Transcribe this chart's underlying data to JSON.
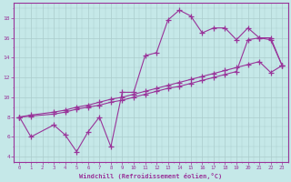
{
  "title": "",
  "xlabel": "Windchill (Refroidissement éolien,°C)",
  "background_color": "#c5e8e8",
  "grid_color": "#aacccc",
  "line_color": "#993399",
  "xlim": [
    -0.5,
    23.5
  ],
  "ylim": [
    3.5,
    19.5
  ],
  "xticks": [
    0,
    1,
    2,
    3,
    4,
    5,
    6,
    7,
    8,
    9,
    10,
    11,
    12,
    13,
    14,
    15,
    16,
    17,
    18,
    19,
    20,
    21,
    22,
    23
  ],
  "yticks": [
    4,
    6,
    8,
    10,
    12,
    14,
    16,
    18
  ],
  "curve1_x": [
    0,
    1,
    3,
    4,
    5,
    6,
    7,
    8,
    9,
    10,
    11,
    12,
    13,
    14,
    15,
    16,
    17,
    18,
    19,
    20,
    21,
    22,
    23
  ],
  "curve1_y": [
    8.0,
    6.0,
    7.2,
    6.2,
    4.5,
    6.5,
    8.0,
    5.0,
    10.5,
    10.5,
    14.2,
    14.5,
    17.8,
    18.8,
    18.2,
    16.5,
    17.0,
    17.0,
    15.8,
    17.0,
    16.0,
    16.0,
    13.2
  ],
  "curve2_x": [
    0,
    1,
    3,
    4,
    5,
    6,
    7,
    8,
    9,
    10,
    11,
    12,
    13,
    14,
    15,
    16,
    17,
    18,
    19,
    20,
    21,
    22,
    23
  ],
  "curve2_y": [
    8.0,
    8.2,
    8.5,
    8.7,
    9.0,
    9.2,
    9.5,
    9.8,
    10.0,
    10.3,
    10.6,
    10.9,
    11.2,
    11.5,
    11.8,
    12.1,
    12.4,
    12.7,
    13.0,
    13.3,
    13.6,
    12.5,
    13.2
  ],
  "curve3_x": [
    0,
    1,
    3,
    4,
    5,
    6,
    7,
    8,
    9,
    10,
    11,
    12,
    13,
    14,
    15,
    16,
    17,
    18,
    19,
    20,
    21,
    22,
    23
  ],
  "curve3_y": [
    8.0,
    8.1,
    8.3,
    8.5,
    8.8,
    9.0,
    9.2,
    9.5,
    9.7,
    10.0,
    10.3,
    10.6,
    10.9,
    11.1,
    11.4,
    11.7,
    12.0,
    12.3,
    12.6,
    15.8,
    16.0,
    15.8,
    13.2
  ]
}
